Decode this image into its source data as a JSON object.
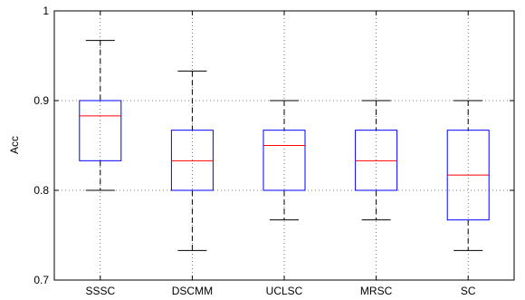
{
  "chart_data": {
    "type": "box",
    "title": "",
    "xlabel": "",
    "ylabel": "Acc",
    "ylim": [
      0.7,
      1.0
    ],
    "yticks": [
      "0.7",
      "0.8",
      "0.9",
      "1"
    ],
    "grid": true,
    "categories": [
      "SSSC",
      "DSCMM",
      "UCLSC",
      "MRSC",
      "SC"
    ],
    "boxes": [
      {
        "name": "SSSC",
        "whisker_low": 0.8,
        "q1": 0.833,
        "median": 0.883,
        "q3": 0.9,
        "whisker_high": 0.967
      },
      {
        "name": "DSCMM",
        "whisker_low": 0.733,
        "q1": 0.8,
        "median": 0.833,
        "q3": 0.867,
        "whisker_high": 0.933
      },
      {
        "name": "UCLSC",
        "whisker_low": 0.767,
        "q1": 0.8,
        "median": 0.85,
        "q3": 0.867,
        "whisker_high": 0.9
      },
      {
        "name": "MRSC",
        "whisker_low": 0.767,
        "q1": 0.8,
        "median": 0.833,
        "q3": 0.867,
        "whisker_high": 0.9
      },
      {
        "name": "SC",
        "whisker_low": 0.733,
        "q1": 0.767,
        "median": 0.817,
        "q3": 0.867,
        "whisker_high": 0.9
      }
    ],
    "colors": {
      "box": "#0000ff",
      "median": "#ff0000",
      "whisker": "#000000"
    }
  }
}
